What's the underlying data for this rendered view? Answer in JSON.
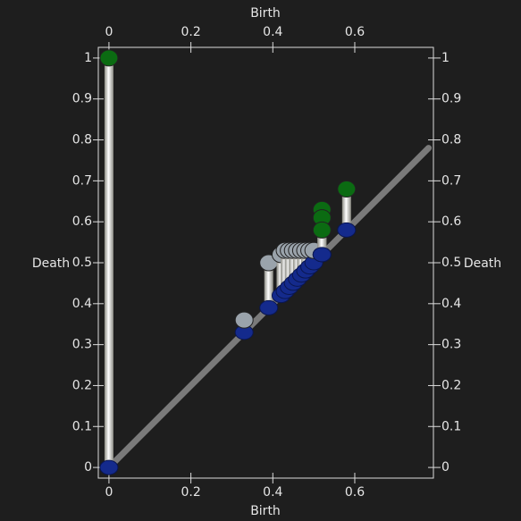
{
  "chart_data": {
    "type": "persistence",
    "xlabel": "Birth",
    "ylabel": "Death",
    "x": [
      0,
      0.33,
      0.39,
      0.42,
      0.43,
      0.44,
      0.45,
      0.46,
      0.47,
      0.48,
      0.49,
      0.5,
      0.52,
      0.52,
      0.52,
      0.58
    ],
    "values": [
      1,
      0.36,
      0.5,
      0.52,
      0.53,
      0.53,
      0.53,
      0.53,
      0.53,
      0.53,
      0.53,
      0.53,
      0.63,
      0.61,
      0.58,
      0.68
    ],
    "colors": [
      "#0b6b12",
      "#9aa3ab",
      "#9aa3ab",
      "#9aa3ab",
      "#9aa3ab",
      "#9aa3ab",
      "#9aa3ab",
      "#9aa3ab",
      "#9aa3ab",
      "#9aa3ab",
      "#9aa3ab",
      "#9aa3ab",
      "#0b6b12",
      "#0b6b12",
      "#0b6b12",
      "#0b6b12"
    ],
    "birth_color": "#142a8c",
    "xlim": [
      -0.026,
      0.792
    ],
    "ylim": [
      -0.026,
      1.026
    ],
    "xticks": [
      0,
      0.2,
      0.4,
      0.6
    ],
    "yticks": [
      0,
      0.1,
      0.2,
      0.3,
      0.4,
      0.5,
      0.6,
      0.7,
      0.8,
      0.9,
      1
    ]
  }
}
